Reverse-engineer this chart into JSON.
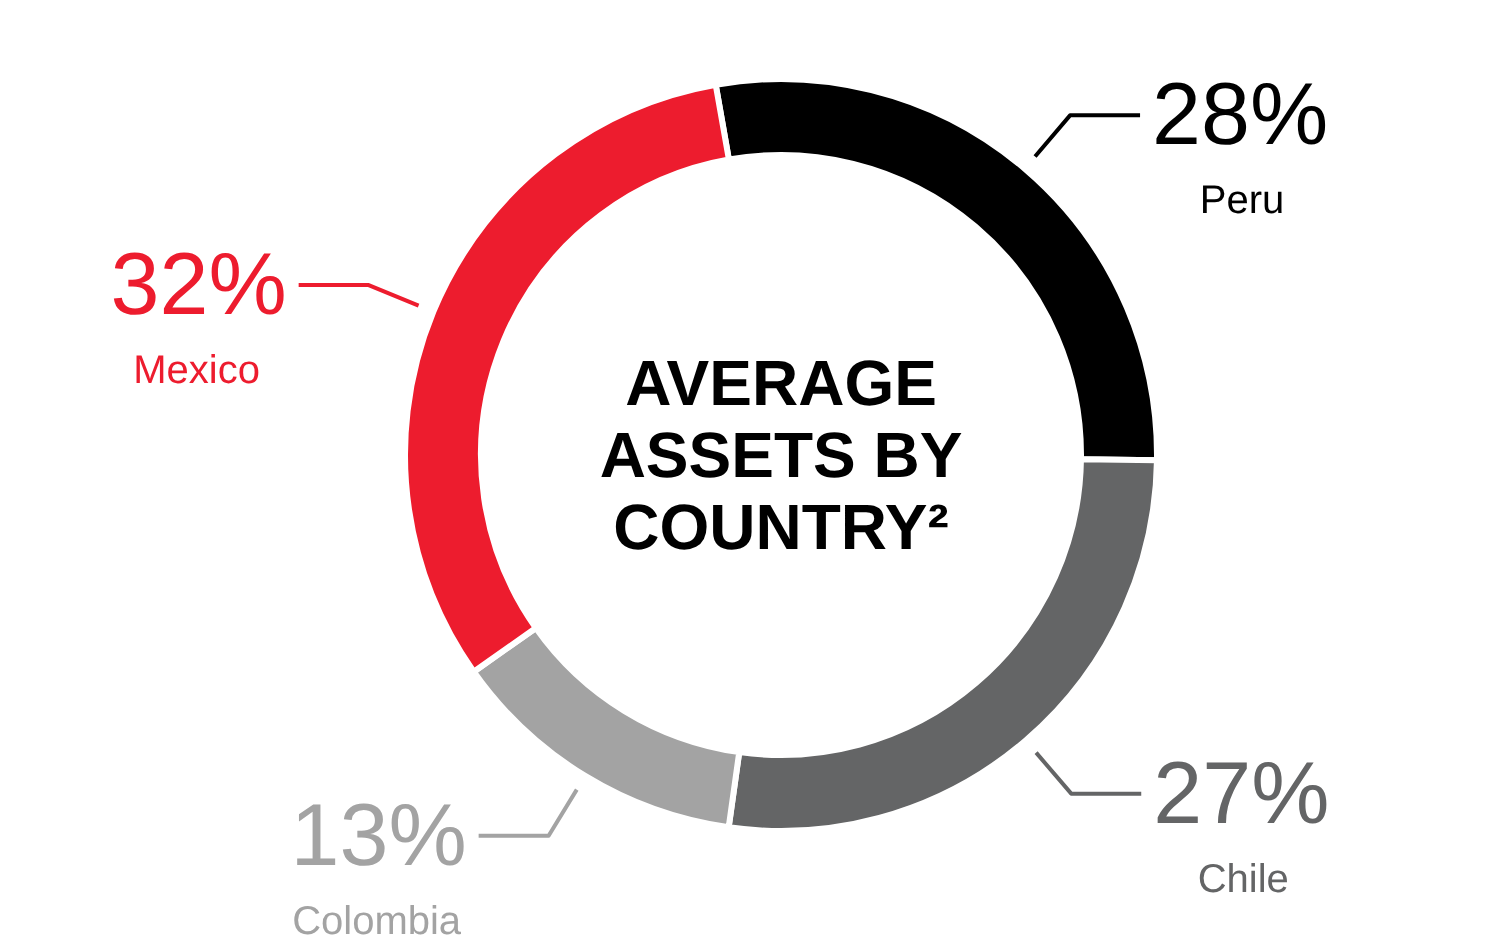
{
  "chart_data": {
    "type": "donut",
    "title": "AVERAGE ASSETS BY COUNTRY²",
    "categories": [
      "Peru",
      "Chile",
      "Colombia",
      "Mexico"
    ],
    "values": [
      28,
      27,
      13,
      32
    ],
    "colors": [
      "#000000",
      "#646566",
      "#a3a3a3",
      "#ed1c2e"
    ],
    "value_labels": [
      "28%",
      "27%",
      "13%",
      "32%"
    ]
  }
}
